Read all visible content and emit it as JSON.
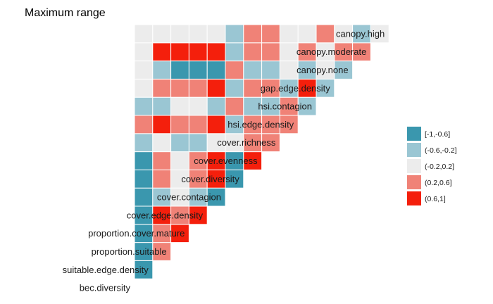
{
  "chart_data": {
    "type": "heatmap",
    "title": "Maximum range",
    "variables": [
      "bec.diversity",
      "suitable.edge.density",
      "proportion.suitable",
      "proportion.cover.mature",
      "cover.edge.density",
      "cover.contagion",
      "cover.diversity",
      "cover.evenness",
      "cover.richness",
      "hsi.edge.density",
      "hsi.contagion",
      "gap.edge.density",
      "canopy.none",
      "canopy.moderate",
      "canopy.high"
    ],
    "legend": {
      "title": "",
      "position": "right",
      "bins": [
        {
          "label": "[-1,-0.6]",
          "color": "#3a97ae"
        },
        {
          "label": "(-0.6,-0.2]",
          "color": "#9ac6d3"
        },
        {
          "label": "(-0.2,0.2]",
          "color": "#ececec"
        },
        {
          "label": "(0.2,0.6]",
          "color": "#f08277"
        },
        {
          "label": "(0.6,1]",
          "color": "#f41f0c"
        }
      ]
    },
    "matrix_bins": [
      [
        -1,
        -1,
        -1,
        -1,
        -1,
        -1,
        -1,
        -1,
        -1,
        -1,
        -1,
        -1,
        -1,
        -1,
        -1
      ],
      [
        0,
        -1,
        -1,
        -1,
        -1,
        -1,
        -1,
        -1,
        -1,
        -1,
        -1,
        -1,
        -1,
        -1,
        -1
      ],
      [
        0,
        3,
        -1,
        -1,
        -1,
        -1,
        -1,
        -1,
        -1,
        -1,
        -1,
        -1,
        -1,
        -1,
        -1
      ],
      [
        0,
        3,
        4,
        -1,
        -1,
        -1,
        -1,
        -1,
        -1,
        -1,
        -1,
        -1,
        -1,
        -1,
        -1
      ],
      [
        0,
        4,
        3,
        4,
        -1,
        -1,
        -1,
        -1,
        -1,
        -1,
        -1,
        -1,
        -1,
        -1,
        -1
      ],
      [
        0,
        1,
        2,
        1,
        0,
        -1,
        -1,
        -1,
        -1,
        -1,
        -1,
        -1,
        -1,
        -1,
        -1
      ],
      [
        0,
        3,
        2,
        3,
        4,
        0,
        -1,
        -1,
        -1,
        -1,
        -1,
        -1,
        -1,
        -1,
        -1
      ],
      [
        0,
        3,
        2,
        3,
        4,
        0,
        4,
        -1,
        -1,
        -1,
        -1,
        -1,
        -1,
        -1,
        -1
      ],
      [
        1,
        2,
        1,
        1,
        2,
        2,
        3,
        3,
        -1,
        -1,
        -1,
        -1,
        -1,
        -1,
        -1
      ],
      [
        3,
        4,
        3,
        3,
        4,
        1,
        3,
        3,
        3,
        -1,
        -1,
        -1,
        -1,
        -1,
        -1
      ],
      [
        1,
        1,
        2,
        2,
        1,
        3,
        1,
        1,
        3,
        1,
        -1,
        -1,
        -1,
        -1,
        -1
      ],
      [
        2,
        3,
        3,
        3,
        4,
        1,
        3,
        3,
        1,
        4,
        1,
        -1,
        -1,
        -1,
        -1
      ],
      [
        2,
        1,
        0,
        0,
        0,
        3,
        1,
        1,
        2,
        1,
        2,
        1,
        -1,
        -1,
        -1
      ],
      [
        2,
        4,
        4,
        4,
        4,
        1,
        3,
        3,
        2,
        3,
        2,
        3,
        3,
        -1,
        -1
      ],
      [
        2,
        2,
        2,
        2,
        2,
        1,
        3,
        3,
        2,
        2,
        3,
        2,
        1,
        2,
        -1
      ]
    ]
  }
}
